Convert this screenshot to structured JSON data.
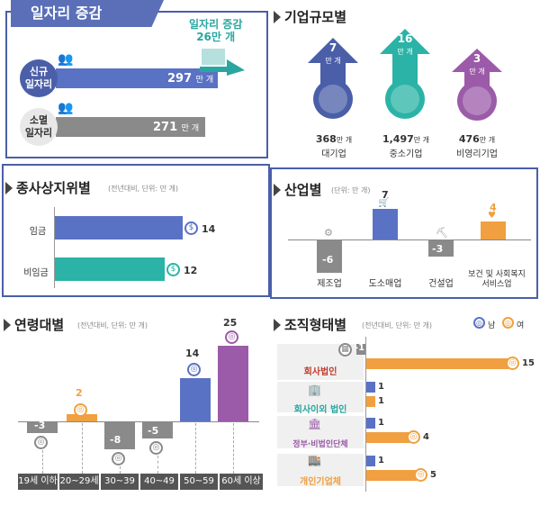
{
  "jobs": {
    "title": "일자리 증감",
    "increase_label_1": "일자리 증감",
    "increase_label_2": "26만 개",
    "new_label": [
      "신규",
      "일자리"
    ],
    "new_value": "297",
    "gone_label": [
      "소멸",
      "일자리"
    ],
    "gone_value": "271",
    "unit": "만 개"
  },
  "size": {
    "title": "기업규모별",
    "items": [
      {
        "num": "7",
        "unit": "만 개",
        "total": "368",
        "total_unit": "만 개",
        "name": "대기업",
        "color": "#4a5fa8"
      },
      {
        "num": "16",
        "unit": "만 개",
        "total": "1,497",
        "total_unit": "만 개",
        "name": "중소기업",
        "color": "#2ab3a6"
      },
      {
        "num": "3",
        "unit": "만 개",
        "total": "476",
        "total_unit": "만 개",
        "name": "비영리기업",
        "color": "#9b5ba8"
      }
    ]
  },
  "status": {
    "title": "종사상지위별",
    "note": "(전년대비, 단위: 만 개)",
    "rows": [
      {
        "label": "임금",
        "value": "14",
        "color": "#5a72c4"
      },
      {
        "label": "비임금",
        "value": "12",
        "color": "#2ab3a6"
      }
    ]
  },
  "industry": {
    "title": "산업별",
    "note": "(단위: 만 개)",
    "items": [
      {
        "label": "제조업",
        "value": "-6",
        "color": "#8a8a8a"
      },
      {
        "label": "도소매업",
        "value": "7",
        "color": "#5a72c4"
      },
      {
        "label": "건설업",
        "value": "-3",
        "color": "#8a8a8a"
      },
      {
        "label": "보건 및 사회복지\n서비스업",
        "value": "4",
        "color": "#f0a040"
      }
    ]
  },
  "age": {
    "title": "연령대별",
    "note": "(전년대비, 단위: 만 개)",
    "items": [
      {
        "label": "19세 이하",
        "value": "-3",
        "color": "#8a8a8a"
      },
      {
        "label": "20~29세",
        "value": "2",
        "color": "#f0a040"
      },
      {
        "label": "30~39세",
        "value": "-8",
        "color": "#8a8a8a"
      },
      {
        "label": "40~49세",
        "value": "-5",
        "color": "#8a8a8a"
      },
      {
        "label": "50~59세",
        "value": "14",
        "color": "#5a72c4"
      },
      {
        "label": "60세 이상",
        "value": "25",
        "color": "#9b5ba8"
      }
    ]
  },
  "org": {
    "title": "조직형태별",
    "note": "(전년대비, 단위: 만 개)",
    "legend_male": "남",
    "legend_female": "여",
    "rows": [
      {
        "label": "회사법인",
        "male": "-1",
        "female": "15"
      },
      {
        "label": "회사이외 법인",
        "male": "1",
        "female": "1"
      },
      {
        "label": "정부·비법인단체",
        "male": "1",
        "female": "4"
      },
      {
        "label": "개인기업체",
        "male": "1",
        "female": "5"
      }
    ]
  }
}
